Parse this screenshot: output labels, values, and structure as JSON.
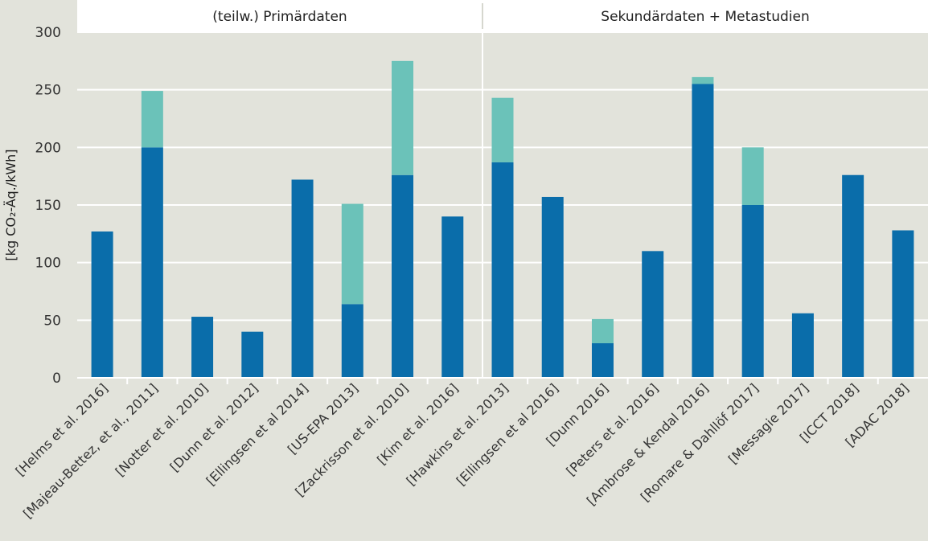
{
  "chart_data": {
    "type": "bar",
    "stacked": true,
    "ylabel": "[kg CO₂-Äq./kWh]",
    "ylim": [
      0,
      300
    ],
    "yticks": [
      0,
      50,
      100,
      150,
      200,
      250,
      300
    ],
    "grid": true,
    "panels": [
      {
        "title": "(teilw.) Primärdaten",
        "first": 0,
        "last": 7
      },
      {
        "title": "Sekundärdaten + Metastudien",
        "first": 8,
        "last": 16
      }
    ],
    "categories": [
      "[Helms et al. 2016]",
      "[Majeau-Bettez, et al., 2011]",
      "[Notter et al. 2010]",
      "[Dunn et al. 2012]",
      "[Ellingsen et al 2014]",
      "[US-EPA 2013]",
      "[Zackrisson et al. 2010]",
      "[Kim et al. 2016]",
      "[Hawkins et al. 2013]",
      "[Ellingsen et al 2016]",
      "[Dunn 2016]",
      "[Peters et al. 2016]",
      "[Ambrose & Kendal 2016]",
      "[Romare & Dahllöf 2017]",
      "[Messagie 2017]",
      "[ICCT 2018]",
      "[ADAC 2018]"
    ],
    "series": [
      {
        "values": [
          127,
          200,
          53,
          40,
          172,
          64,
          176,
          140,
          187,
          157,
          30,
          110,
          255,
          150,
          56,
          176,
          128
        ],
        "color": "#0a6daa"
      },
      {
        "values": [
          0,
          49,
          0,
          0,
          0,
          87,
          99,
          0,
          56,
          0,
          21,
          0,
          6,
          50,
          0,
          0,
          0
        ],
        "color": "#6bc2b9"
      }
    ]
  }
}
